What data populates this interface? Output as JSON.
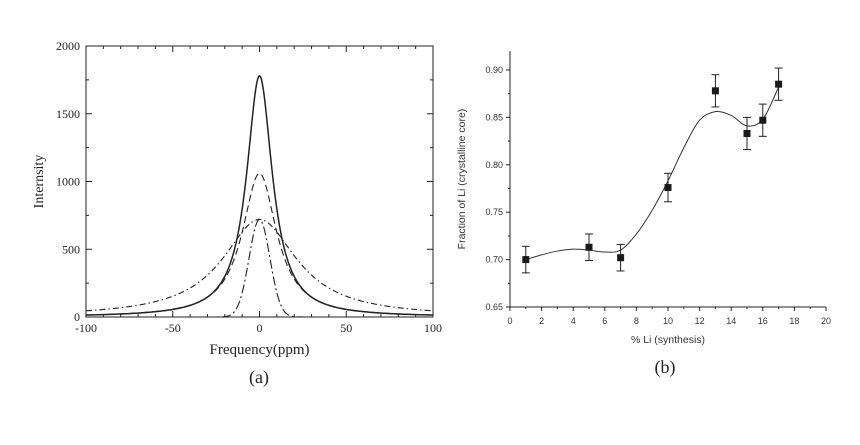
{
  "chart_data": [
    {
      "type": "line",
      "panel_label": "(a)",
      "xlabel": "Frequency(ppm)",
      "ylabel": "Internsity",
      "xlim": [
        -100,
        100
      ],
      "ylim": [
        0,
        2000
      ],
      "x_ticks": [
        -100,
        -50,
        0,
        50,
        100
      ],
      "y_ticks": [
        0,
        500,
        1000,
        1500,
        2000
      ],
      "grid": false,
      "series": [
        {
          "style": "solid",
          "shape": "lorentzian",
          "center": 0,
          "height": 1780,
          "hwhm": 9
        },
        {
          "style": "dashed",
          "shape": "lorentzian",
          "center": 0,
          "height": 1060,
          "hwhm": 12
        },
        {
          "style": "dash-dot-wide",
          "shape": "gaussian",
          "center": 0,
          "height": 720,
          "sigma": 6
        },
        {
          "style": "dash-dot",
          "shape": "lorentzian",
          "center": 0,
          "height": 720,
          "hwhm": 26
        }
      ]
    },
    {
      "type": "scatter",
      "panel_label": "(b)",
      "xlabel": "% Li (synthesis)",
      "ylabel": "Fraction of  Li (crystalline core)",
      "xlim": [
        0,
        20
      ],
      "ylim": [
        0.65,
        0.92
      ],
      "x_ticks": [
        0,
        2,
        4,
        6,
        8,
        10,
        12,
        14,
        16,
        18,
        20
      ],
      "y_ticks": [
        0.65,
        0.7,
        0.75,
        0.8,
        0.85,
        0.9
      ],
      "grid": false,
      "points": [
        {
          "x": 1,
          "y": 0.7,
          "err": 0.014
        },
        {
          "x": 5,
          "y": 0.713,
          "err": 0.014
        },
        {
          "x": 7,
          "y": 0.702,
          "err": 0.014
        },
        {
          "x": 10,
          "y": 0.776,
          "err": 0.015
        },
        {
          "x": 13,
          "y": 0.878,
          "err": 0.017
        },
        {
          "x": 15,
          "y": 0.833,
          "err": 0.017
        },
        {
          "x": 16,
          "y": 0.847,
          "err": 0.017
        },
        {
          "x": 17,
          "y": 0.885,
          "err": 0.017
        }
      ],
      "fit_curve": {
        "x": [
          1,
          2,
          3,
          4,
          5,
          6,
          7,
          8,
          9,
          10,
          11,
          12,
          13,
          14,
          15,
          16,
          17
        ],
        "y": [
          0.7,
          0.705,
          0.709,
          0.711,
          0.71,
          0.708,
          0.71,
          0.727,
          0.752,
          0.783,
          0.818,
          0.847,
          0.856,
          0.852,
          0.841,
          0.848,
          0.882
        ]
      }
    }
  ]
}
